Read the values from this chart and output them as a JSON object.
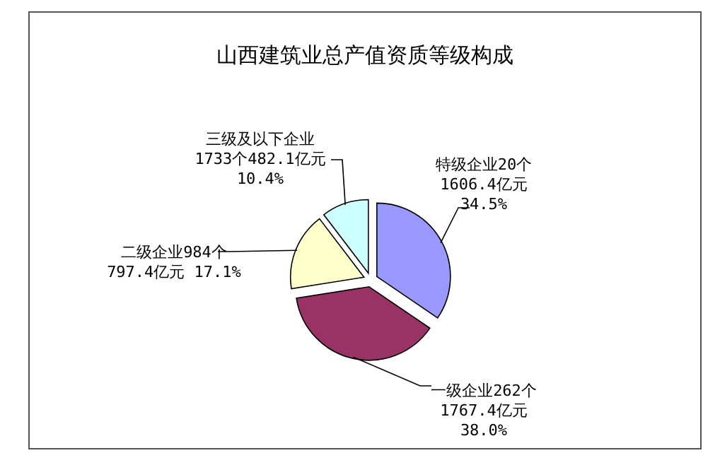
{
  "chart_data": {
    "type": "pie",
    "title": "山西建筑业总产值资质等级构成",
    "categories": [
      "特级企业20个",
      "一级企业262个",
      "二级企业984个",
      "三级及以下企业"
    ],
    "values": [
      1606.4,
      1767.4,
      797.4,
      482.1
    ],
    "value_labels": [
      "1606.4亿元\n34.5%",
      "1767.4亿元\n38.0%",
      "797.4亿元 17.1%",
      "1733个482.1亿元\n10.4%"
    ],
    "colors": [
      "#9999ff",
      "#993366",
      "#ffffcc",
      "#ccffff"
    ],
    "legend": false
  }
}
